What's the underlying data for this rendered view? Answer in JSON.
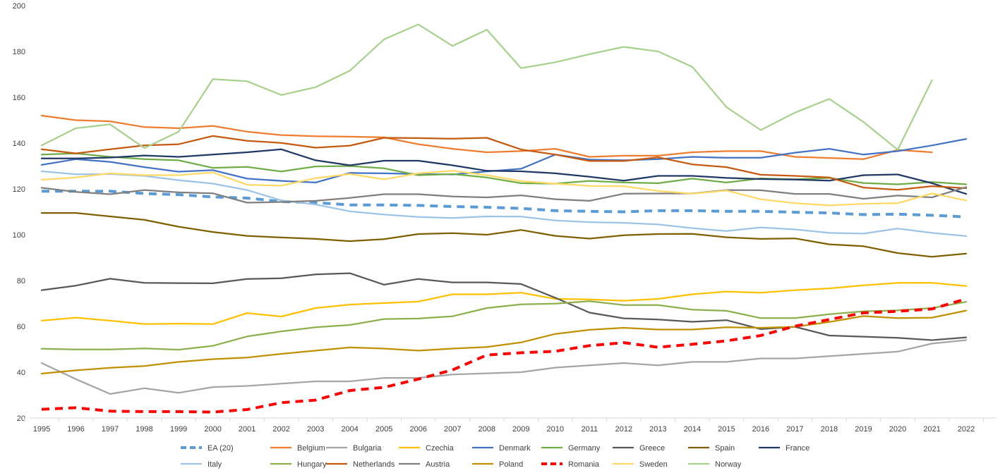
{
  "chart_data": {
    "type": "line",
    "title": "",
    "xlabel": "",
    "ylabel": "",
    "ylim": [
      20,
      200
    ],
    "yticks": [
      20,
      40,
      60,
      80,
      100,
      120,
      140,
      160,
      180,
      200
    ],
    "ytick_labels": [
      "20",
      "40",
      "60",
      "80",
      "100",
      "120",
      "140",
      "160",
      "180",
      "200"
    ],
    "grid": false,
    "legend_position": "bottom",
    "x": [
      "1995",
      "1996",
      "1997",
      "1998",
      "1999",
      "2000",
      "2001",
      "2002",
      "2003",
      "2004",
      "2005",
      "2006",
      "2007",
      "2008",
      "2009",
      "2010",
      "2011",
      "2012",
      "2013",
      "2014",
      "2015",
      "2016",
      "2017",
      "2018",
      "2019",
      "2020",
      "2021",
      "2022"
    ],
    "series": [
      {
        "name": "EA (20)",
        "color": "#5B9BD5",
        "dashed": true,
        "values": [
          119,
          119,
          119,
          118,
          117.5,
          116.5,
          116,
          114.5,
          114,
          113,
          113,
          112.8,
          112.3,
          112,
          111.5,
          110.5,
          110.2,
          110,
          110.5,
          110.5,
          110.2,
          110.2,
          109.8,
          109.5,
          108.8,
          109,
          108.5,
          107.8
        ]
      },
      {
        "name": "Belgium",
        "color": "#ED7D31",
        "dashed": false,
        "values": [
          152,
          150,
          149.5,
          147,
          146.5,
          147.5,
          145,
          143.5,
          143,
          142.8,
          142.5,
          139.5,
          137.5,
          136,
          136.5,
          137.5,
          134,
          134.5,
          134.5,
          136,
          136.5,
          136.5,
          134,
          133.5,
          133,
          137,
          136,
          null
        ]
      },
      {
        "name": "Bulgaria",
        "color": "#A5A5A5",
        "dashed": false,
        "values": [
          44,
          37,
          30.5,
          33,
          31,
          33.5,
          34,
          35,
          36,
          36,
          37.5,
          37.5,
          39,
          39.5,
          40,
          42,
          43,
          44,
          43,
          44.5,
          44.5,
          46,
          46,
          47,
          48,
          49,
          52.5,
          54
        ]
      },
      {
        "name": "Czechia",
        "color": "#FFC000",
        "dashed": false,
        "values": [
          62.5,
          63.8,
          62.5,
          61,
          61.2,
          61,
          65.8,
          64.3,
          68,
          69.5,
          70.2,
          70.8,
          74,
          74,
          74.7,
          72,
          71.8,
          71.2,
          72,
          74,
          75.2,
          74.7,
          75.8,
          76.6,
          77.9,
          79,
          79,
          77.6
        ]
      },
      {
        "name": "Denmark",
        "color": "#4472C4",
        "dashed": false,
        "values": [
          130.5,
          133,
          131.8,
          129.5,
          127.5,
          128.2,
          124.5,
          123.5,
          122.8,
          127,
          126.8,
          126.5,
          126.3,
          127.6,
          128.8,
          135,
          132.8,
          132.5,
          133,
          134,
          133.6,
          133.6,
          135.8,
          137.5,
          135,
          136.5,
          139,
          141.8
        ]
      },
      {
        "name": "Germany",
        "color": "#70AD47",
        "dashed": false,
        "values": [
          135,
          135.5,
          134,
          133,
          132.5,
          129.2,
          129.6,
          127.6,
          129.8,
          130,
          129,
          126,
          126.5,
          125,
          122.5,
          122.3,
          123.5,
          122.8,
          122.5,
          124.5,
          122.8,
          124.6,
          124.2,
          124.8,
          122.6,
          122,
          123,
          122
        ]
      },
      {
        "name": "Greece",
        "color": "#595959",
        "dashed": false,
        "values": [
          75.8,
          77.8,
          80.8,
          79,
          78.9,
          78.8,
          80.7,
          81,
          82.7,
          83.2,
          78.2,
          80.7,
          79.2,
          79.2,
          78.5,
          72.5,
          66,
          63.5,
          63,
          62,
          62.7,
          58.8,
          59.8,
          56,
          55.5,
          55,
          54,
          55.2
        ]
      },
      {
        "name": "Spain",
        "color": "#7F6000",
        "dashed": false,
        "values": [
          109.5,
          109.5,
          108,
          106.5,
          103.5,
          101.2,
          99.5,
          98.8,
          98.2,
          97.2,
          98.1,
          100.3,
          100.7,
          100,
          102.1,
          99.5,
          98.3,
          99.8,
          100.3,
          100.4,
          98.9,
          98.2,
          98.4,
          95.8,
          95,
          92,
          90.4,
          91.8
        ]
      },
      {
        "name": "France",
        "color": "#203864",
        "dashed": false,
        "values": [
          133.3,
          133.3,
          133.7,
          134.6,
          134,
          135,
          136,
          137.3,
          132.5,
          130.3,
          132.3,
          132.3,
          130.3,
          127.9,
          127.7,
          126.8,
          125.3,
          123.6,
          125.7,
          125.7,
          124.8,
          124.3,
          124.1,
          123.6,
          126,
          126.3,
          122.5,
          117.8
        ]
      },
      {
        "name": "Italy",
        "color": "#9DC3E6",
        "dashed": false,
        "values": [
          127.7,
          126.4,
          126.5,
          125.7,
          123.8,
          122.3,
          119.5,
          115,
          113.2,
          110.2,
          108.8,
          107.8,
          107.3,
          108,
          107.9,
          106.2,
          105.5,
          105.2,
          104.5,
          102.9,
          101.6,
          103.2,
          102.3,
          100.8,
          100.5,
          102.7,
          100.8,
          99.4
        ]
      },
      {
        "name": "Hungary",
        "color": "#8DB04D",
        "dashed": false,
        "values": [
          50.2,
          49.9,
          49.9,
          50.4,
          49.8,
          51.5,
          55.6,
          57.8,
          59.6,
          60.6,
          63.2,
          63.4,
          64.4,
          68,
          69.6,
          69.9,
          71,
          69.3,
          69.3,
          67.3,
          66.8,
          63.6,
          63.6,
          65.3,
          66.6,
          67,
          68,
          70.7
        ]
      },
      {
        "name": "Netherlands",
        "color": "#C55A11",
        "dashed": false,
        "values": [
          137.3,
          135.5,
          137.3,
          139,
          139.5,
          143.1,
          141,
          140.1,
          138,
          138.9,
          142.3,
          142.2,
          141.9,
          142.3,
          137.2,
          135,
          132.2,
          132.2,
          133.8,
          130.7,
          129.5,
          126.2,
          125.7,
          125,
          120.6,
          119.6,
          121.2,
          120.3
        ]
      },
      {
        "name": "Austria",
        "color": "#7F7F7F",
        "dashed": false,
        "values": [
          120.5,
          118.7,
          117.7,
          119.5,
          118.5,
          118.1,
          114,
          114.3,
          114.8,
          116.1,
          117.7,
          117.7,
          116.7,
          116.3,
          117.2,
          115.5,
          114.8,
          117.9,
          118,
          118,
          119.5,
          119.4,
          117.8,
          117.8,
          115.7,
          117.1,
          116.3,
          120.8
        ]
      },
      {
        "name": "Poland",
        "color": "#BF9000",
        "dashed": false,
        "values": [
          39.4,
          40.8,
          41.9,
          42.7,
          44.5,
          45.7,
          46.4,
          48,
          49.4,
          50.8,
          50.3,
          49.4,
          50.3,
          51,
          53,
          56.7,
          58.5,
          59.4,
          58.6,
          58.6,
          59.6,
          59.4,
          59.8,
          61.9,
          64.5,
          63.6,
          63.8,
          66.9
        ]
      },
      {
        "name": "Romania",
        "color": "#FF0000",
        "dashed": true,
        "values": [
          23.8,
          24.5,
          23,
          22.8,
          22.8,
          22.6,
          23.7,
          26.7,
          27.8,
          32,
          33.4,
          37,
          41,
          47.5,
          48.5,
          49.1,
          51.6,
          52.9,
          50.9,
          52.2,
          53.7,
          56,
          60.1,
          63,
          65.9,
          66.6,
          67.6,
          72
        ]
      },
      {
        "name": "Sweden",
        "color": "#FFD966",
        "dashed": false,
        "values": [
          124,
          125,
          126.8,
          126,
          126,
          127.2,
          121.8,
          121.4,
          124.7,
          126.5,
          124.2,
          126.8,
          127.9,
          126,
          123.4,
          122.3,
          121.3,
          121.2,
          119.1,
          117.9,
          119.3,
          115.5,
          113.8,
          112.8,
          113.5,
          113.8,
          118,
          115
        ]
      },
      {
        "name": "Norway",
        "color": "#A9D18E",
        "dashed": false,
        "values": [
          139,
          146.5,
          148.2,
          137.8,
          145,
          167.9,
          167,
          161,
          164.4,
          171.6,
          185.3,
          191.8,
          182.4,
          189.5,
          172.7,
          175.3,
          178.8,
          182,
          180,
          173.3,
          155.7,
          145.7,
          153.3,
          159.3,
          149.2,
          137.1,
          167.4,
          null
        ]
      }
    ]
  }
}
